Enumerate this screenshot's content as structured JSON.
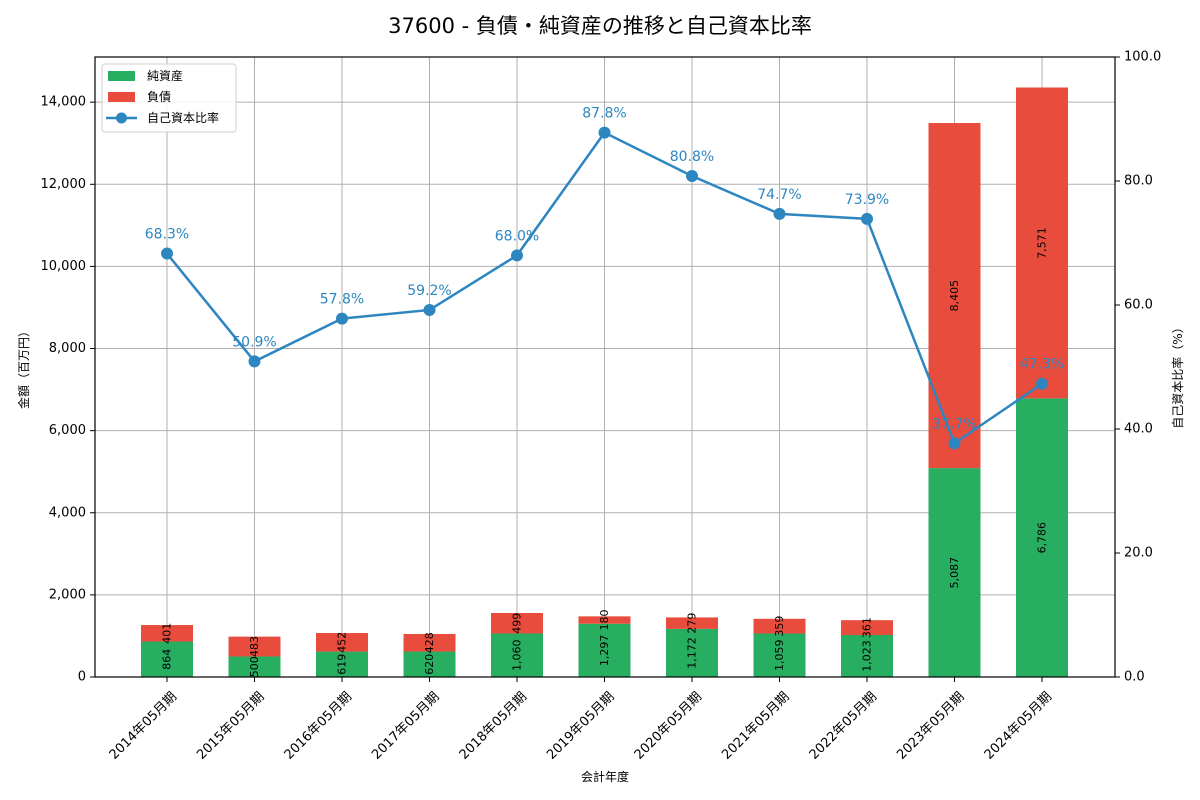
{
  "title": "37600 - 負債・純資産の推移と自己資本比率",
  "colors": {
    "net_assets": "#27ae60",
    "liabilities": "#e74c3c",
    "equity_ratio": "#2e86c1",
    "grid": "#b0b0b0",
    "axis": "#000000"
  },
  "legend": {
    "items": [
      {
        "label": "純資産",
        "type": "bar",
        "color": "#27ae60"
      },
      {
        "label": "負債",
        "type": "bar",
        "color": "#e74c3c"
      },
      {
        "label": "自己資本比率",
        "type": "line",
        "color": "#2e86c1"
      }
    ]
  },
  "axes": {
    "xlabel": "会計年度",
    "ylabel_left": "金額（百万円）",
    "ylabel_right": "自己資本比率（%）",
    "left_ticks": [
      "0",
      "2,000",
      "4,000",
      "6,000",
      "8,000",
      "10,000",
      "12,000",
      "14,000"
    ],
    "right_ticks": [
      "0.0",
      "20.0",
      "40.0",
      "60.0",
      "80.0",
      "100.0"
    ]
  },
  "chart_data": {
    "type": "bar",
    "title": "37600 - 負債・純資産の推移と自己資本比率",
    "xlabel": "会計年度",
    "ylabel": "金額（百万円）",
    "ylabel_right": "自己資本比率（%）",
    "ylim": [
      0,
      15100
    ],
    "ylim_right": [
      0,
      100
    ],
    "grid": true,
    "legend_position": "upper left",
    "stacked": true,
    "categories": [
      "2014年05月期",
      "2015年05月期",
      "2016年05月期",
      "2017年05月期",
      "2018年05月期",
      "2019年05月期",
      "2020年05月期",
      "2021年05月期",
      "2022年05月期",
      "2023年05月期",
      "2024年05月期"
    ],
    "series": [
      {
        "name": "純資産",
        "type": "bar",
        "axis": "left",
        "values": [
          864,
          500,
          619,
          620,
          1060,
          1297,
          1172,
          1059,
          1023,
          5087,
          6786
        ],
        "labels": [
          "864",
          "500",
          "619",
          "620",
          "1,060",
          "1,297",
          "1,172",
          "1,059",
          "1,023",
          "5,087",
          "6,786"
        ]
      },
      {
        "name": "負債",
        "type": "bar",
        "axis": "left",
        "values": [
          401,
          483,
          452,
          428,
          499,
          180,
          279,
          359,
          361,
          8405,
          7571
        ],
        "labels": [
          "401",
          "483",
          "452",
          "428",
          "499",
          "180",
          "279",
          "359",
          "361",
          "8,405",
          "7,571"
        ]
      },
      {
        "name": "自己資本比率",
        "type": "line",
        "axis": "right",
        "values": [
          68.3,
          50.9,
          57.8,
          59.2,
          68.0,
          87.8,
          80.8,
          74.7,
          73.9,
          37.7,
          47.3
        ],
        "labels": [
          "68.3%",
          "50.9%",
          "57.8%",
          "59.2%",
          "68.0%",
          "87.8%",
          "80.8%",
          "74.7%",
          "73.9%",
          "37.7%",
          "47.3%"
        ]
      }
    ]
  }
}
